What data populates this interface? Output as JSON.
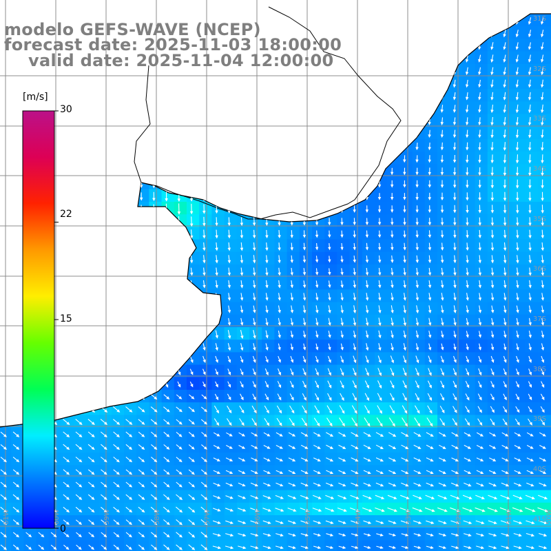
{
  "title": {
    "line1": "modelo GEFS-WAVE (NCEP)",
    "line2": "forecast date: 2025-11-03 18:00:00",
    "line3": "valid date: 2025-11-04 12:00:00"
  },
  "colorbar": {
    "unit": "[m/s]",
    "ticks": [
      "30",
      "22",
      "15",
      "0"
    ],
    "tick_values": [
      30,
      22,
      15,
      0
    ],
    "range": [
      0,
      30
    ],
    "colors": [
      "#0000ff",
      "#0077ff",
      "#00eeff",
      "#00ff55",
      "#66ff00",
      "#ffee00",
      "#ff9900",
      "#ff2200",
      "#dd0055",
      "#bb1188"
    ]
  },
  "grid": {
    "lat_labels": [
      "31S",
      "32S",
      "33S",
      "34S",
      "35S",
      "36S",
      "37S",
      "38S",
      "39S",
      "40S",
      "41S"
    ],
    "lon_labels": [
      "61W",
      "60W",
      "59W",
      "58W",
      "57W",
      "56W",
      "55W",
      "54W",
      "53W",
      "52W",
      "51W",
      "50W"
    ]
  },
  "colors": {
    "land": "#ffffff",
    "grid": "#8c8c8c",
    "coast": "#000000",
    "arrow": "#ffffff",
    "title": "#7f7f7f"
  },
  "map": {
    "region": "Rio de la Plata / Uruguay / southern Brazil coast",
    "field": "wind speed with direction arrows"
  }
}
